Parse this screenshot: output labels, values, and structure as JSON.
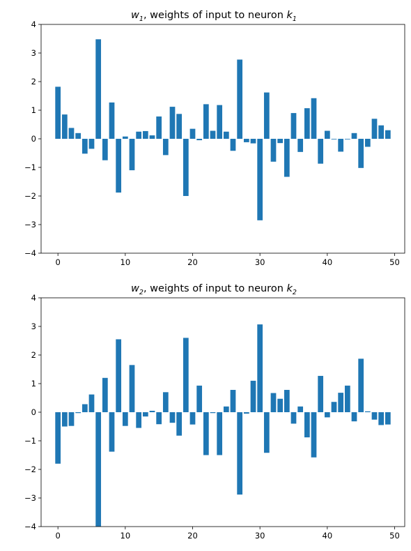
{
  "colors": {
    "bar": "#1f77b4",
    "axis": "#000000",
    "background": "#ffffff"
  },
  "chart_data": [
    {
      "type": "bar",
      "title": {
        "var": "w",
        "var_sub": "1",
        "middle": ", weights of input to neuron ",
        "neuron": "k",
        "neuron_sub": "1"
      },
      "xlabel": "",
      "ylabel": "",
      "x": [
        0,
        1,
        2,
        3,
        4,
        5,
        6,
        7,
        8,
        9,
        10,
        11,
        12,
        13,
        14,
        15,
        16,
        17,
        18,
        19,
        20,
        21,
        22,
        23,
        24,
        25,
        26,
        27,
        28,
        29,
        30,
        31,
        32,
        33,
        34,
        35,
        36,
        37,
        38,
        39,
        40,
        41,
        42,
        43,
        44,
        45,
        46,
        47,
        48,
        49
      ],
      "values": [
        1.82,
        0.85,
        0.38,
        0.2,
        -0.52,
        -0.35,
        3.48,
        -0.75,
        1.27,
        -1.88,
        0.08,
        -1.1,
        0.25,
        0.27,
        0.12,
        0.78,
        -0.57,
        1.12,
        0.87,
        -2.0,
        0.35,
        -0.05,
        1.21,
        0.28,
        1.18,
        0.25,
        -0.42,
        2.77,
        -0.12,
        -0.16,
        -2.85,
        1.62,
        -0.8,
        -0.15,
        -1.33,
        0.9,
        -0.46,
        1.07,
        1.42,
        -0.87,
        0.28,
        -0.02,
        -0.45,
        -0.02,
        0.2,
        -1.02,
        -0.28,
        0.7,
        0.47,
        0.3
      ],
      "xlim": [
        -2.5,
        51.5
      ],
      "ylim": [
        -4,
        4
      ],
      "xticks": [
        "0",
        "10",
        "20",
        "30",
        "40",
        "50"
      ],
      "yticks": [
        "-4",
        "-3",
        "-2",
        "-1",
        "0",
        "1",
        "2",
        "3",
        "4"
      ],
      "grid": false
    },
    {
      "type": "bar",
      "title": {
        "var": "w",
        "var_sub": "2",
        "middle": ", weights of input to neuron ",
        "neuron": "k",
        "neuron_sub": "2"
      },
      "xlabel": "",
      "ylabel": "",
      "x": [
        0,
        1,
        2,
        3,
        4,
        5,
        6,
        7,
        8,
        9,
        10,
        11,
        12,
        13,
        14,
        15,
        16,
        17,
        18,
        19,
        20,
        21,
        22,
        23,
        24,
        25,
        26,
        27,
        28,
        29,
        30,
        31,
        32,
        33,
        34,
        35,
        36,
        37,
        38,
        39,
        40,
        41,
        42,
        43,
        44,
        45,
        46,
        47,
        48,
        49
      ],
      "values": [
        -1.8,
        -0.5,
        -0.48,
        -0.03,
        0.28,
        0.62,
        -4.0,
        1.2,
        -1.38,
        2.55,
        -0.48,
        1.65,
        -0.55,
        -0.15,
        0.05,
        -0.42,
        0.7,
        -0.37,
        -0.82,
        2.6,
        -0.43,
        0.93,
        -1.5,
        -0.03,
        -1.5,
        0.2,
        0.78,
        -2.88,
        -0.05,
        1.1,
        3.07,
        -1.42,
        0.67,
        0.47,
        0.78,
        -0.4,
        0.2,
        -0.88,
        -1.58,
        1.27,
        -0.18,
        0.36,
        0.68,
        0.93,
        -0.32,
        1.87,
        0.03,
        -0.26,
        -0.45,
        -0.43
      ],
      "xlim": [
        -2.5,
        51.5
      ],
      "ylim": [
        -4,
        4
      ],
      "xticks": [
        "0",
        "10",
        "20",
        "30",
        "40",
        "50"
      ],
      "yticks": [
        "-4",
        "-3",
        "-2",
        "-1",
        "0",
        "1",
        "2",
        "3",
        "4"
      ],
      "grid": false
    }
  ]
}
